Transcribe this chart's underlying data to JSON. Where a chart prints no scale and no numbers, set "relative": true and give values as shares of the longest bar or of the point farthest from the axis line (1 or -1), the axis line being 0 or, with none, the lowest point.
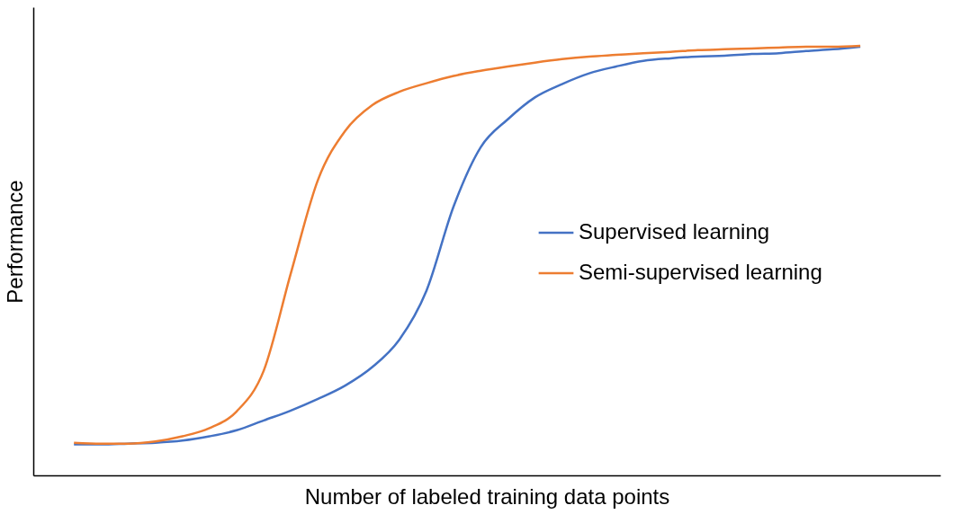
{
  "chart_data": {
    "type": "line",
    "relative": true,
    "xlabel": "Number of labeled training data points",
    "ylabel": "Performance",
    "legend": "right",
    "grid": false,
    "marker": "none",
    "line_style": "solid",
    "categories": [
      null,
      null,
      null,
      null,
      null,
      null,
      null,
      null,
      null,
      null,
      null,
      null,
      null,
      null,
      null,
      null,
      null,
      null,
      null,
      null,
      null,
      null,
      null,
      null,
      null,
      null,
      null,
      null,
      null,
      null
    ],
    "series": [
      {
        "name": "Supervised learning",
        "color": "#4472c4",
        "values": [
          0.072,
          0.072,
          0.074,
          0.076,
          0.081,
          0.091,
          0.105,
          0.128,
          0.151,
          0.178,
          0.209,
          0.252,
          0.316,
          0.43,
          0.626,
          0.764,
          0.829,
          0.88,
          0.911,
          0.936,
          0.952,
          0.965,
          0.971,
          0.975,
          0.977,
          0.981,
          0.983,
          0.988,
          0.992,
          0.998
        ]
      },
      {
        "name": "Semi-supervised learning",
        "color": "#ed7d31",
        "values": [
          0.076,
          0.074,
          0.074,
          0.079,
          0.091,
          0.11,
          0.149,
          0.244,
          0.471,
          0.688,
          0.802,
          0.862,
          0.893,
          0.913,
          0.93,
          0.942,
          0.952,
          0.961,
          0.969,
          0.975,
          0.979,
          0.983,
          0.986,
          0.99,
          0.992,
          0.994,
          0.996,
          0.998,
          0.998,
          1.0
        ]
      }
    ]
  }
}
